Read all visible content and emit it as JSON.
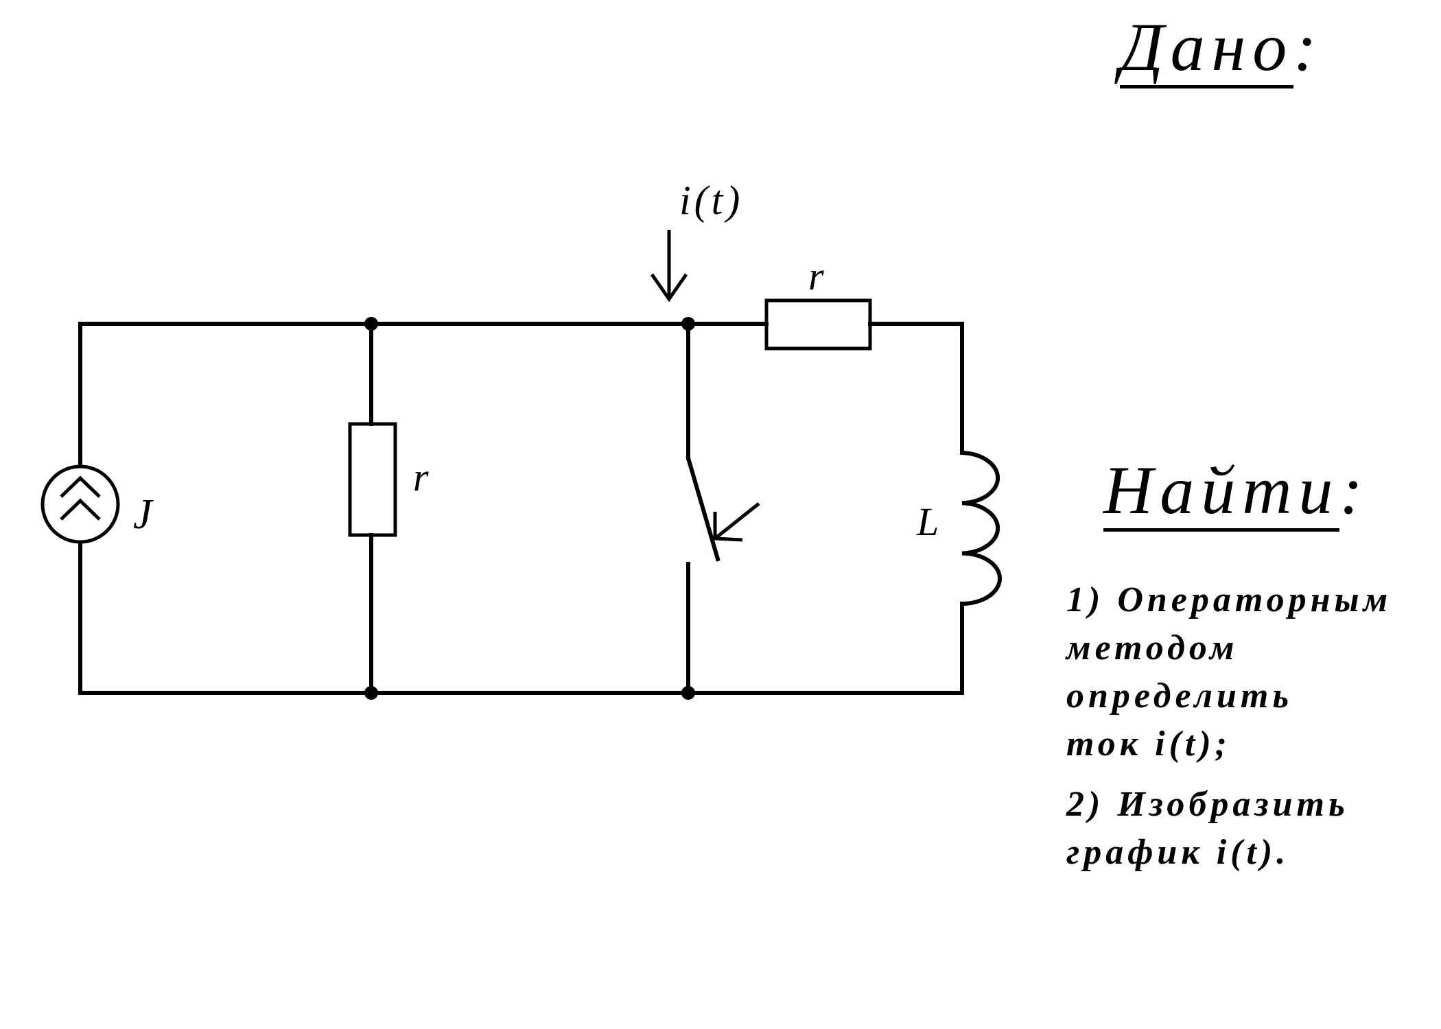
{
  "given": {
    "title": "Дано",
    "colon": ":"
  },
  "find": {
    "title": "Найти",
    "colon": ":",
    "tasks": [
      "1) Операторным\nметодом\nопределить\nток i(t);",
      "2) Изобразить\nграфик i(t)."
    ]
  },
  "circuit": {
    "current_source_label": "J",
    "left_resistor_label": "r",
    "top_resistor_label": "r",
    "inductor_label": "L",
    "current_label": "i(t)"
  }
}
